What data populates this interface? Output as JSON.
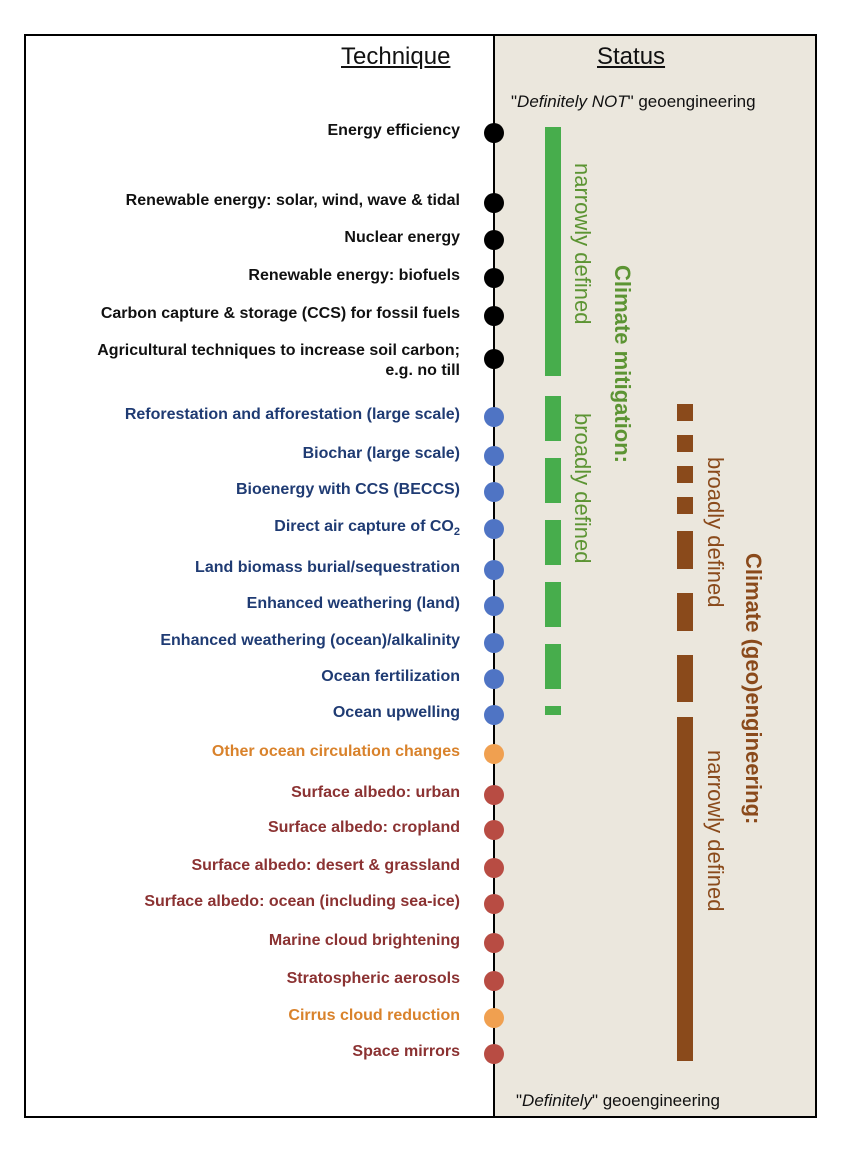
{
  "headers": {
    "technique": "Technique",
    "status": "Status"
  },
  "notes": {
    "top_pre": "\"",
    "top_italic": "Definitely NOT",
    "top_post": "\" geoengineering",
    "bottom_pre": "\"",
    "bottom_italic": "Definitely",
    "bottom_post": "\" geoengineering"
  },
  "colors": {
    "black": "#111111",
    "blue": "#1f3b73",
    "orange": "#d9822b",
    "red": "#8b3232",
    "dot_blue": "#4f74c4",
    "dot_orange": "#f0a050",
    "dot_red": "#b84c43",
    "green": "#47ad4c",
    "green_text": "#5c9433",
    "brown": "#8a4a1b"
  },
  "techniques": [
    {
      "label": "Energy efficiency",
      "category": "black"
    },
    {
      "label": "Renewable energy: solar, wind, wave & tidal",
      "category": "black"
    },
    {
      "label": "Nuclear energy",
      "category": "black"
    },
    {
      "label": "Renewable energy: biofuels",
      "category": "black"
    },
    {
      "label": "Carbon capture & storage (CCS) for fossil fuels",
      "category": "black"
    },
    {
      "label": "Agricultural techniques to increase soil carbon; e.g. no till",
      "category": "black"
    },
    {
      "label": "Reforestation and afforestation (large scale)",
      "category": "blue"
    },
    {
      "label": "Biochar (large scale)",
      "category": "blue"
    },
    {
      "label": "Bioenergy with CCS (BECCS)",
      "category": "blue"
    },
    {
      "label": "Direct air capture of CO",
      "subscript": "2",
      "category": "blue"
    },
    {
      "label": "Land biomass burial/sequestration",
      "category": "blue"
    },
    {
      "label": "Enhanced weathering (land)",
      "category": "blue"
    },
    {
      "label": "Enhanced weathering (ocean)/alkalinity",
      "category": "blue"
    },
    {
      "label": "Ocean fertilization",
      "category": "blue"
    },
    {
      "label": "Ocean upwelling",
      "category": "blue"
    },
    {
      "label": "Other ocean circulation changes",
      "category": "orange"
    },
    {
      "label": "Surface albedo: urban",
      "category": "red"
    },
    {
      "label": "Surface albedo: cropland",
      "category": "red"
    },
    {
      "label": "Surface albedo: desert & grassland",
      "category": "red"
    },
    {
      "label": "Surface albedo: ocean (including sea-ice)",
      "category": "red"
    },
    {
      "label": "Marine cloud brightening",
      "category": "red"
    },
    {
      "label": "Stratospheric aerosols",
      "category": "red"
    },
    {
      "label": "Cirrus cloud reduction",
      "category": "orange"
    },
    {
      "label": "Space mirrors",
      "category": "red"
    }
  ],
  "labels": {
    "mitigation_title": "Climate mitigation:",
    "mitigation_narrow": "narrowly defined",
    "mitigation_broad": "broadly defined",
    "geo_title": "Climate (geo)engineering:",
    "geo_broad": "broadly defined",
    "geo_narrow": "narrowly defined"
  }
}
